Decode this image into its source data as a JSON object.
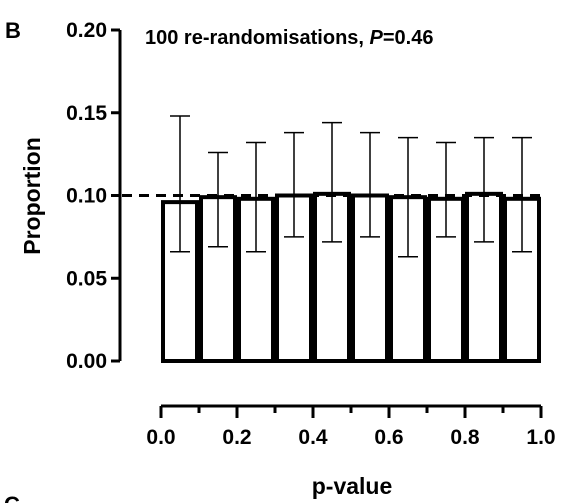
{
  "panel_label": "B",
  "next_panel_label": "C",
  "chart_data": {
    "type": "bar",
    "annotation": {
      "text": "100 re-randomisations, ",
      "p_symbol": "P",
      "p_value": "=0.46"
    },
    "xlabel": "p-value",
    "ylabel": "Proportion",
    "xlim": [
      0.0,
      1.0
    ],
    "ylim": [
      0.0,
      0.2
    ],
    "x_ticks": [
      "0.0",
      "0.2",
      "0.4",
      "0.6",
      "0.8",
      "1.0"
    ],
    "x_tick_values": [
      0.0,
      0.2,
      0.4,
      0.6,
      0.8,
      1.0
    ],
    "x_minor_ticks": [
      0.1,
      0.3,
      0.5,
      0.7,
      0.9
    ],
    "y_ticks": [
      "0.00",
      "0.05",
      "0.10",
      "0.15",
      "0.20"
    ],
    "y_tick_values": [
      0.0,
      0.05,
      0.1,
      0.15,
      0.2
    ],
    "bins": [
      {
        "x0": 0.0,
        "x1": 0.1,
        "value": 0.096,
        "err_low": 0.066,
        "err_high": 0.148
      },
      {
        "x0": 0.1,
        "x1": 0.2,
        "value": 0.099,
        "err_low": 0.069,
        "err_high": 0.126
      },
      {
        "x0": 0.2,
        "x1": 0.3,
        "value": 0.098,
        "err_low": 0.066,
        "err_high": 0.132
      },
      {
        "x0": 0.3,
        "x1": 0.4,
        "value": 0.1,
        "err_low": 0.075,
        "err_high": 0.138
      },
      {
        "x0": 0.4,
        "x1": 0.5,
        "value": 0.101,
        "err_low": 0.072,
        "err_high": 0.144
      },
      {
        "x0": 0.5,
        "x1": 0.6,
        "value": 0.1,
        "err_low": 0.075,
        "err_high": 0.138
      },
      {
        "x0": 0.6,
        "x1": 0.7,
        "value": 0.099,
        "err_low": 0.063,
        "err_high": 0.135
      },
      {
        "x0": 0.7,
        "x1": 0.8,
        "value": 0.098,
        "err_low": 0.075,
        "err_high": 0.132
      },
      {
        "x0": 0.8,
        "x1": 0.9,
        "value": 0.101,
        "err_low": 0.072,
        "err_high": 0.135
      },
      {
        "x0": 0.9,
        "x1": 1.0,
        "value": 0.098,
        "err_low": 0.066,
        "err_high": 0.135
      }
    ],
    "reference_line": {
      "y": 0.1,
      "style": "dashed"
    },
    "bar_fill": "#ffffff",
    "bar_stroke": "#000000",
    "grid": false,
    "legend": "none"
  }
}
